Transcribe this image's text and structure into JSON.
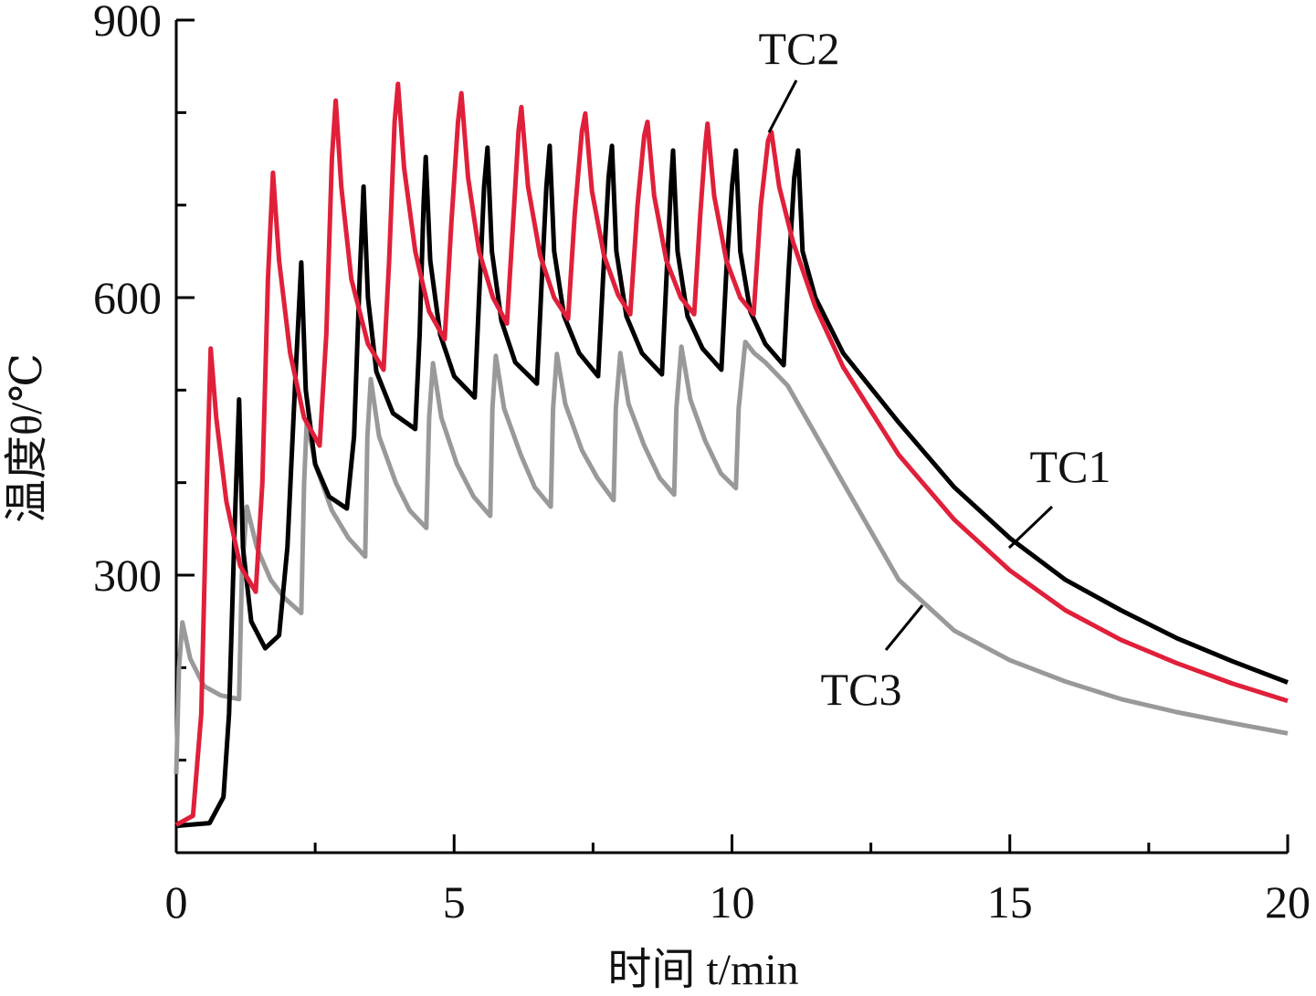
{
  "chart_data": {
    "type": "line",
    "xlabel": "时间 t/min",
    "ylabel": "温度θ/℃",
    "xlim": [
      0,
      20
    ],
    "ylim": [
      0,
      900
    ],
    "xticks": [
      0,
      5,
      10,
      15,
      20
    ],
    "xminor_ticks": [
      2.5,
      7.5,
      12.5,
      17.5
    ],
    "yticks": [
      300,
      600,
      900
    ],
    "yminor_ticks": [
      100,
      200,
      400,
      500,
      700,
      800
    ],
    "series": [
      {
        "name": "TC1",
        "color": "#000000",
        "x": [
          0,
          0.6,
          0.85,
          0.95,
          1.05,
          1.13,
          1.2,
          1.35,
          1.6,
          1.85,
          2.0,
          2.15,
          2.25,
          2.33,
          2.5,
          2.75,
          3.07,
          3.2,
          3.3,
          3.37,
          3.45,
          3.6,
          3.9,
          4.3,
          4.38,
          4.45,
          4.49,
          4.57,
          4.75,
          5.0,
          5.37,
          5.45,
          5.54,
          5.6,
          5.68,
          5.85,
          6.1,
          6.49,
          6.57,
          6.66,
          6.72,
          6.8,
          6.98,
          7.25,
          7.59,
          7.68,
          7.78,
          7.84,
          7.92,
          8.1,
          8.38,
          8.74,
          8.82,
          8.9,
          8.94,
          9.02,
          9.2,
          9.47,
          9.81,
          9.9,
          10.0,
          10.07,
          10.15,
          10.33,
          10.6,
          10.93,
          11.02,
          11.12,
          11.19,
          11.27,
          11.5,
          12,
          13,
          14,
          15,
          16,
          17,
          18,
          19,
          20
        ],
        "values": [
          29,
          32,
          60,
          150,
          350,
          490,
          330,
          250,
          221,
          235,
          330,
          520,
          638,
          500,
          420,
          385,
          372,
          450,
          620,
          720,
          600,
          520,
          475,
          458,
          560,
          700,
          752,
          640,
          560,
          515,
          492,
          600,
          720,
          762,
          650,
          575,
          530,
          507,
          610,
          720,
          764,
          650,
          580,
          540,
          515,
          620,
          730,
          764,
          650,
          580,
          540,
          517,
          620,
          720,
          759,
          650,
          580,
          545,
          522,
          630,
          720,
          759,
          650,
          585,
          550,
          527,
          630,
          730,
          759,
          650,
          600,
          540,
          465,
          395,
          340,
          295,
          262,
          232,
          207,
          184
        ]
      },
      {
        "name": "TC2",
        "color": "#e0203a",
        "x": [
          0,
          0.3,
          0.45,
          0.55,
          0.62,
          0.72,
          0.9,
          1.15,
          1.43,
          1.55,
          1.65,
          1.74,
          1.85,
          2.05,
          2.3,
          2.58,
          2.7,
          2.8,
          2.87,
          2.97,
          3.15,
          3.45,
          3.73,
          3.83,
          3.93,
          3.99,
          4.1,
          4.3,
          4.55,
          4.83,
          4.95,
          5.07,
          5.13,
          5.25,
          5.45,
          5.7,
          5.95,
          6.07,
          6.16,
          6.21,
          6.33,
          6.55,
          6.8,
          7.05,
          7.17,
          7.3,
          7.36,
          7.48,
          7.7,
          7.95,
          8.17,
          8.3,
          8.42,
          8.48,
          8.6,
          8.82,
          9.08,
          9.32,
          9.43,
          9.52,
          9.56,
          9.68,
          9.9,
          10.15,
          10.39,
          10.52,
          10.65,
          10.71,
          10.85,
          11.1,
          11.5,
          12,
          13,
          14,
          15,
          16,
          17,
          18,
          19,
          20
        ],
        "values": [
          30,
          40,
          150,
          400,
          545,
          470,
          380,
          310,
          282,
          400,
          620,
          735,
          640,
          540,
          470,
          440,
          560,
          750,
          813,
          720,
          620,
          550,
          522,
          640,
          790,
          831,
          740,
          650,
          585,
          555,
          680,
          790,
          821,
          730,
          650,
          600,
          572,
          690,
          780,
          806,
          720,
          645,
          600,
          577,
          690,
          780,
          799,
          715,
          645,
          603,
          582,
          700,
          775,
          790,
          710,
          640,
          600,
          582,
          690,
          765,
          788,
          710,
          640,
          600,
          582,
          700,
          770,
          779,
          720,
          660,
          590,
          525,
          430,
          360,
          305,
          262,
          230,
          205,
          183,
          164
        ]
      },
      {
        "name": "TC3",
        "color": "#999999",
        "x": [
          0,
          0.05,
          0.11,
          0.25,
          0.5,
          0.8,
          1.13,
          1.18,
          1.27,
          1.45,
          1.7,
          1.95,
          2.25,
          2.3,
          2.35,
          2.5,
          2.8,
          3.1,
          3.4,
          3.44,
          3.5,
          3.65,
          3.95,
          4.2,
          4.5,
          4.55,
          4.62,
          4.77,
          5.05,
          5.35,
          5.65,
          5.69,
          5.75,
          5.9,
          6.2,
          6.45,
          6.74,
          6.78,
          6.85,
          7.0,
          7.3,
          7.58,
          7.87,
          7.91,
          7.99,
          8.14,
          8.42,
          8.7,
          8.96,
          9.0,
          9.09,
          9.25,
          9.52,
          9.8,
          10.07,
          10.12,
          10.24,
          10.4,
          10.6,
          11,
          12,
          13,
          14,
          15,
          16,
          17,
          18,
          19,
          20
        ],
        "values": [
          85,
          200,
          249,
          210,
          180,
          170,
          166,
          300,
          374,
          330,
          295,
          275,
          259,
          400,
          468,
          420,
          370,
          340,
          320,
          450,
          512,
          450,
          400,
          370,
          351,
          470,
          529,
          470,
          420,
          385,
          364,
          480,
          537,
          480,
          430,
          395,
          374,
          480,
          539,
          485,
          435,
          405,
          381,
          480,
          540,
          485,
          440,
          405,
          387,
          480,
          547,
          490,
          445,
          410,
          394,
          480,
          552,
          540,
          530,
          505,
          400,
          295,
          240,
          208,
          185,
          166,
          152,
          140,
          129
        ]
      }
    ]
  }
}
